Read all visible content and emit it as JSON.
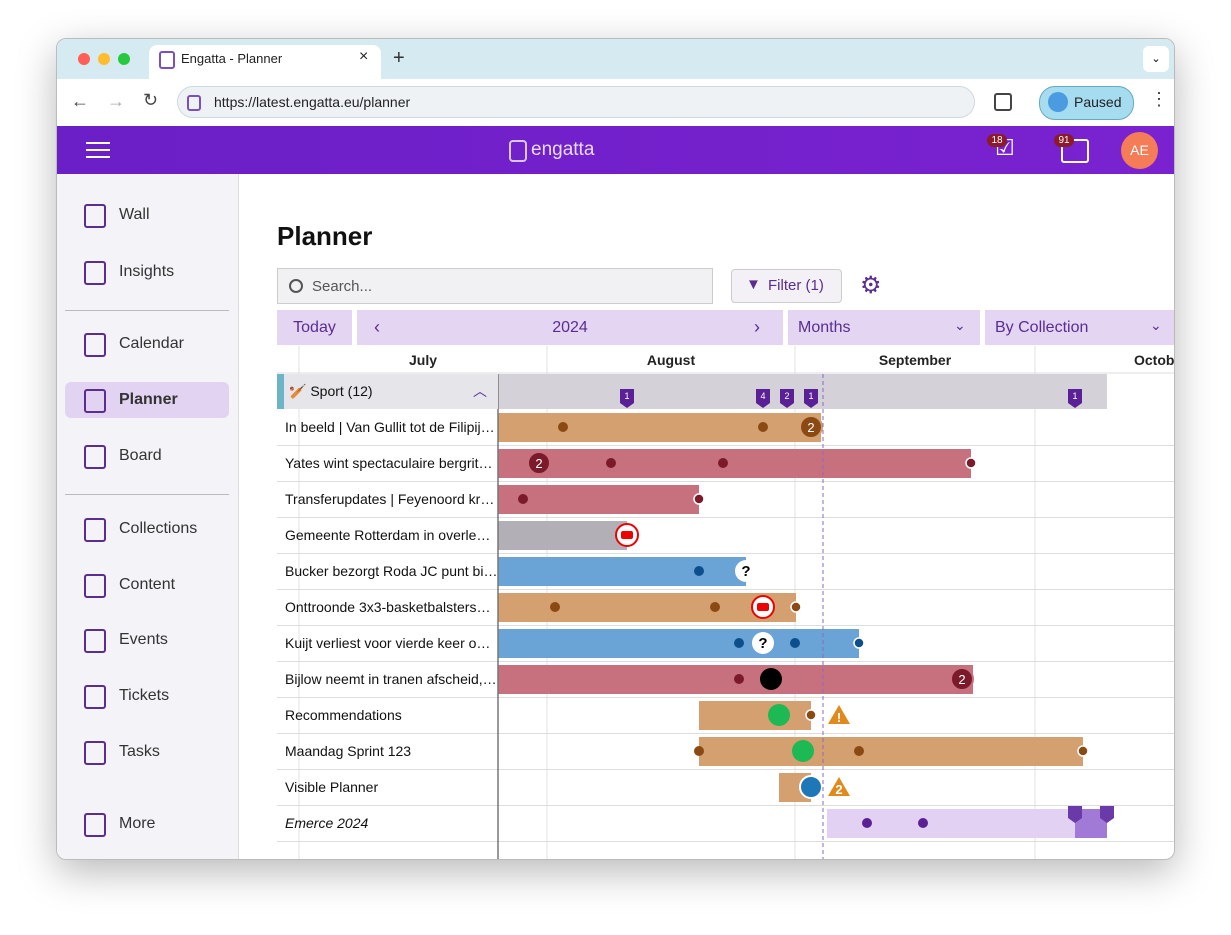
{
  "browser": {
    "tab_title": "Engatta - Planner",
    "url": "https://latest.engatta.eu/planner",
    "profile": "Paused"
  },
  "header": {
    "logo": "engatta",
    "tasks_badge": "18",
    "messages_badge": "91",
    "avatar": "AE"
  },
  "sidebar": {
    "items": [
      "Wall",
      "Insights",
      "Calendar",
      "Planner",
      "Board",
      "Collections",
      "Content",
      "Events",
      "Tickets",
      "Tasks",
      "More"
    ]
  },
  "page": {
    "title": "Planner",
    "search_placeholder": "Search...",
    "filter": "Filter (1)"
  },
  "toolbar": {
    "today": "Today",
    "year": "2024",
    "scale": "Months",
    "grouping": "By Collection"
  },
  "timeline": {
    "months": [
      "July",
      "August",
      "September",
      "October"
    ]
  },
  "group": {
    "label": "🏏 Sport (12)",
    "markers": [
      "1",
      "4",
      "2",
      "1",
      "1"
    ]
  },
  "rows": [
    {
      "label": "In beeld | Van Gullit tot de Filipij…",
      "badge": "2"
    },
    {
      "label": "Yates wint spectaculaire bergrit…",
      "badge": "2"
    },
    {
      "label": "Transferupdates | Feyenoord kr…"
    },
    {
      "label": "Gemeente Rotterdam in overle…"
    },
    {
      "label": "Bucker bezorgt Roda JC punt bi…",
      "question": "?"
    },
    {
      "label": "Onttroonde 3x3-basketbalsters…"
    },
    {
      "label": "Kuijt verliest voor vierde keer o…",
      "question": "?"
    },
    {
      "label": "Bijlow neemt in tranen afscheid,…",
      "badge": "2"
    },
    {
      "label": "Recommendations",
      "warning": "!"
    },
    {
      "label": "Maandag Sprint 123"
    },
    {
      "label": "Visible Planner",
      "warning": "2"
    },
    {
      "label": "Emerce 2024"
    }
  ]
}
